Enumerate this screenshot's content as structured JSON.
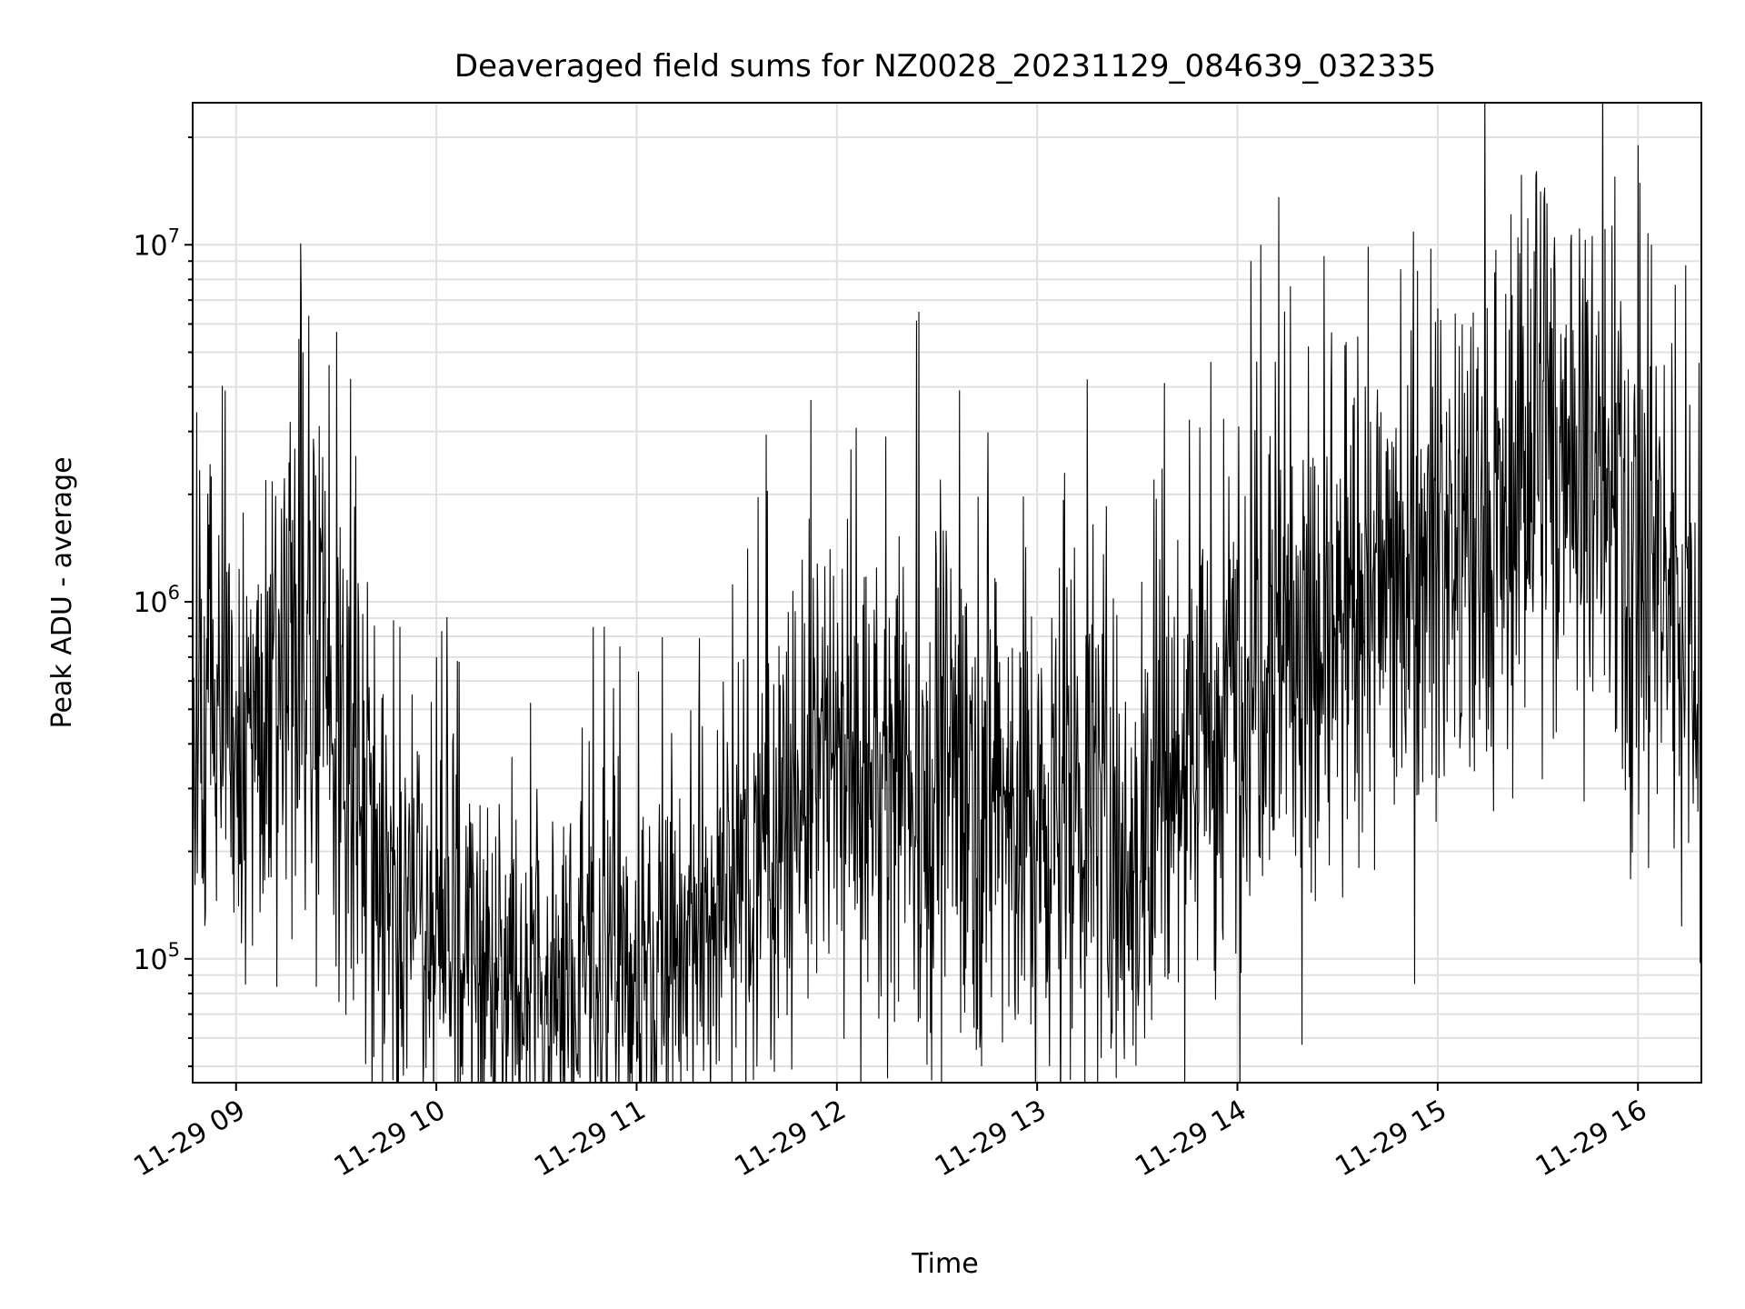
{
  "chart_data": {
    "type": "line",
    "title": "Deaveraged field sums for NZ0028_20231129_084639_032335",
    "xlabel": "Time",
    "ylabel": "Peak ADU - average",
    "yscale": "log",
    "ylim": [
      45000,
      25000000
    ],
    "xlim": [
      "2023-11-29 08:47",
      "2023-11-29 16:19"
    ],
    "grid": true,
    "x_tick_labels": [
      "11-29 09",
      "11-29 10",
      "11-29 11",
      "11-29 12",
      "11-29 13",
      "11-29 14",
      "11-29 15",
      "11-29 16"
    ],
    "x_tick_times": [
      "2023-11-29 09:00",
      "2023-11-29 10:00",
      "2023-11-29 11:00",
      "2023-11-29 12:00",
      "2023-11-29 13:00",
      "2023-11-29 14:00",
      "2023-11-29 15:00",
      "2023-11-29 16:00"
    ],
    "y_ticks": [
      {
        "base": "10",
        "exp": "5",
        "value": 100000
      },
      {
        "base": "10",
        "exp": "6",
        "value": 1000000
      },
      {
        "base": "10",
        "exp": "7",
        "value": 10000000
      }
    ],
    "line_color": "#000000",
    "series": [
      {
        "x": [
          "2023-11-29 08:47",
          "2023-11-29 09:00",
          "2023-11-29 09:10",
          "2023-11-29 09:18",
          "2023-11-29 09:30",
          "2023-11-29 09:40",
          "2023-11-29 09:50",
          "2023-11-29 10:00",
          "2023-11-29 10:15",
          "2023-11-29 10:30",
          "2023-11-29 10:45",
          "2023-11-29 11:00",
          "2023-11-29 11:15",
          "2023-11-29 11:30",
          "2023-11-29 11:45",
          "2023-11-29 12:00",
          "2023-11-29 12:15",
          "2023-11-29 12:30",
          "2023-11-29 12:45",
          "2023-11-29 13:00",
          "2023-11-29 13:15",
          "2023-11-29 13:30",
          "2023-11-29 13:45",
          "2023-11-29 14:00",
          "2023-11-29 14:10",
          "2023-11-29 14:20",
          "2023-11-29 14:35",
          "2023-11-29 14:50",
          "2023-11-29 15:00",
          "2023-11-29 15:15",
          "2023-11-29 15:30",
          "2023-11-29 15:40",
          "2023-11-29 15:55",
          "2023-11-29 16:05",
          "2023-11-29 16:19"
        ],
        "values": [
          450000,
          480000,
          400000,
          900000,
          550000,
          250000,
          140000,
          110000,
          95000,
          90000,
          85000,
          100000,
          115000,
          160000,
          250000,
          350000,
          300000,
          330000,
          330000,
          220000,
          280000,
          200000,
          380000,
          550000,
          1100000,
          600000,
          900000,
          1300000,
          1600000,
          1200000,
          2500000,
          3000000,
          1500000,
          1200000,
          900000
        ],
        "spread": [
          0.32,
          0.32,
          0.32,
          0.45,
          0.4,
          0.32,
          0.3,
          0.28,
          0.26,
          0.25,
          0.25,
          0.25,
          0.27,
          0.3,
          0.33,
          0.36,
          0.36,
          0.36,
          0.36,
          0.36,
          0.38,
          0.38,
          0.38,
          0.4,
          0.42,
          0.42,
          0.4,
          0.38,
          0.38,
          0.38,
          0.4,
          0.4,
          0.4,
          0.4,
          0.4
        ]
      }
    ],
    "annotated_peaks": [
      {
        "x": "2023-11-29 09:20",
        "y": 5000000
      },
      {
        "x": "2023-11-29 09:30",
        "y": 5700000
      },
      {
        "x": "2023-11-29 10:00",
        "y": 700000
      },
      {
        "x": "2023-11-29 10:47",
        "y": 850000
      },
      {
        "x": "2023-11-29 10:55",
        "y": 750000
      },
      {
        "x": "2023-11-29 12:31",
        "y": 2200000
      },
      {
        "x": "2023-11-29 13:15",
        "y": 4200000
      },
      {
        "x": "2023-11-29 13:35",
        "y": 2200000
      },
      {
        "x": "2023-11-29 13:38",
        "y": 4100000
      },
      {
        "x": "2023-11-29 13:52",
        "y": 4700000
      },
      {
        "x": "2023-11-29 14:04",
        "y": 9000000
      },
      {
        "x": "2023-11-29 14:07",
        "y": 10000000
      },
      {
        "x": "2023-11-29 14:14",
        "y": 6500000
      },
      {
        "x": "2023-11-29 15:24",
        "y": 10500000
      },
      {
        "x": "2023-11-29 15:35",
        "y": 10500000
      },
      {
        "x": "2023-11-29 16:00",
        "y": 19000000
      },
      {
        "x": "2023-11-29 16:04",
        "y": 10000000
      },
      {
        "x": "2023-11-29 14:53",
        "y": 85000
      },
      {
        "x": "2023-11-29 12:28",
        "y": 62000
      },
      {
        "x": "2023-11-29 10:21",
        "y": 57000
      }
    ]
  }
}
